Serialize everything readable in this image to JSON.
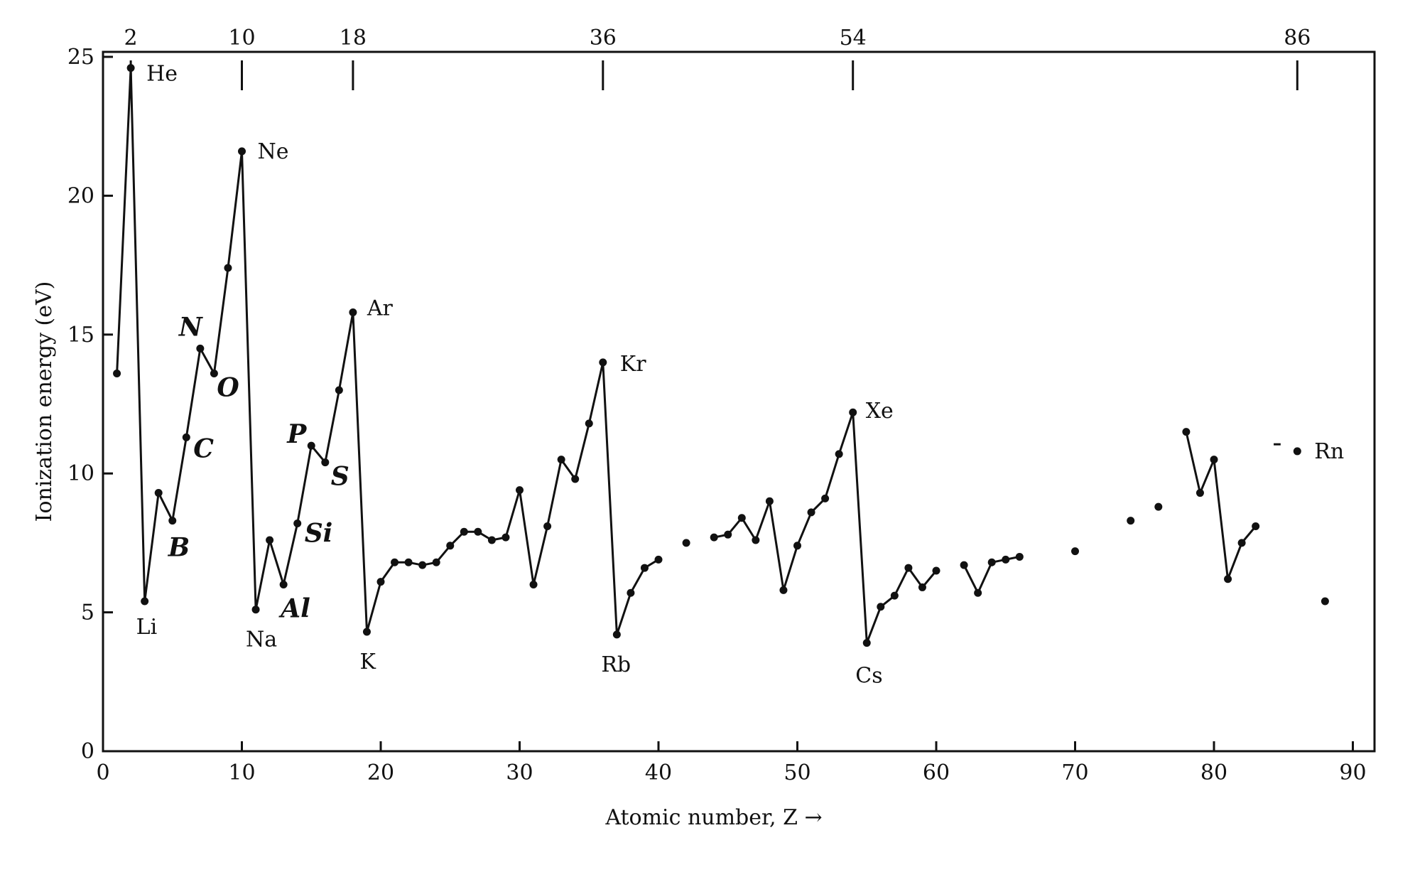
{
  "chart_data": {
    "type": "scatter",
    "xlabel": "Atomic number, Z →",
    "ylabel": "Ionization energy (eV)",
    "xlim": [
      0,
      91
    ],
    "ylim": [
      0,
      25
    ],
    "x_ticks": [
      "0",
      "10",
      "20",
      "30",
      "40",
      "50",
      "60",
      "70",
      "80",
      "90"
    ],
    "y_ticks": [
      "0",
      "5",
      "10",
      "15",
      "20",
      "25"
    ],
    "top_ticks": [
      {
        "z": 2,
        "label": "2"
      },
      {
        "z": 10,
        "label": "10"
      },
      {
        "z": 18,
        "label": "18"
      },
      {
        "z": 36,
        "label": "36"
      },
      {
        "z": 54,
        "label": "54"
      },
      {
        "z": 86,
        "label": "86"
      }
    ],
    "segments": [
      [
        [
          1,
          13.6
        ],
        [
          2,
          24.6
        ],
        [
          3,
          5.4
        ],
        [
          4,
          9.3
        ],
        [
          5,
          8.3
        ],
        [
          6,
          11.3
        ],
        [
          7,
          14.5
        ],
        [
          8,
          13.6
        ],
        [
          9,
          17.4
        ],
        [
          10,
          21.6
        ],
        [
          11,
          5.1
        ],
        [
          12,
          7.6
        ],
        [
          13,
          6.0
        ],
        [
          14,
          8.2
        ],
        [
          15,
          11.0
        ],
        [
          16,
          10.4
        ],
        [
          17,
          13.0
        ],
        [
          18,
          15.8
        ],
        [
          19,
          4.3
        ],
        [
          20,
          6.1
        ],
        [
          21,
          6.8
        ],
        [
          22,
          6.8
        ],
        [
          23,
          6.7
        ],
        [
          24,
          6.8
        ],
        [
          25,
          7.4
        ],
        [
          26,
          7.9
        ],
        [
          27,
          7.9
        ],
        [
          28,
          7.6
        ],
        [
          29,
          7.7
        ],
        [
          30,
          9.4
        ],
        [
          31,
          6.0
        ],
        [
          32,
          8.1
        ],
        [
          33,
          10.5
        ],
        [
          34,
          9.8
        ],
        [
          35,
          11.8
        ],
        [
          36,
          14.0
        ],
        [
          37,
          4.2
        ],
        [
          38,
          5.7
        ],
        [
          39,
          6.6
        ],
        [
          40,
          6.9
        ]
      ],
      [
        [
          42,
          7.5
        ]
      ],
      [
        [
          44,
          7.7
        ],
        [
          45,
          7.8
        ],
        [
          46,
          8.4
        ],
        [
          47,
          7.6
        ],
        [
          48,
          9.0
        ],
        [
          49,
          5.8
        ],
        [
          50,
          7.4
        ],
        [
          51,
          8.6
        ],
        [
          52,
          9.1
        ],
        [
          53,
          10.7
        ],
        [
          54,
          12.2
        ],
        [
          55,
          3.9
        ],
        [
          56,
          5.2
        ],
        [
          57,
          5.6
        ],
        [
          58,
          6.6
        ],
        [
          59,
          5.9
        ],
        [
          60,
          6.5
        ]
      ],
      [
        [
          62,
          6.7
        ],
        [
          63,
          5.7
        ],
        [
          64,
          6.8
        ],
        [
          65,
          6.9
        ],
        [
          66,
          7.0
        ]
      ],
      [
        [
          70,
          7.2
        ]
      ],
      [
        [
          74,
          8.3
        ]
      ],
      [
        [
          76,
          8.8
        ]
      ],
      [
        [
          78,
          11.5
        ],
        [
          79,
          9.3
        ],
        [
          80,
          10.5
        ],
        [
          81,
          6.2
        ],
        [
          82,
          7.5
        ],
        [
          83,
          8.1
        ]
      ],
      [
        [
          86,
          10.8
        ]
      ],
      [
        [
          88,
          5.4
        ]
      ]
    ],
    "element_labels": [
      {
        "text": "He",
        "z": 2,
        "e": 24.6,
        "dx": 22,
        "dy": 18
      },
      {
        "text": "Li",
        "z": 3,
        "e": 5.4,
        "dx": -12,
        "dy": 46
      },
      {
        "text": "Ne",
        "z": 10,
        "e": 21.6,
        "dx": 22,
        "dy": 10
      },
      {
        "text": "Na",
        "z": 11,
        "e": 5.1,
        "dx": -14,
        "dy": 52
      },
      {
        "text": "Ar",
        "z": 18,
        "e": 15.8,
        "dx": 20,
        "dy": 4
      },
      {
        "text": "K",
        "z": 19,
        "e": 4.3,
        "dx": -10,
        "dy": 52
      },
      {
        "text": "Kr",
        "z": 36,
        "e": 14.0,
        "dx": 24,
        "dy": 12
      },
      {
        "text": "Rb",
        "z": 37,
        "e": 4.2,
        "dx": -22,
        "dy": 52
      },
      {
        "text": "Xe",
        "z": 54,
        "e": 12.2,
        "dx": 18,
        "dy": 8
      },
      {
        "text": "Cs",
        "z": 55,
        "e": 3.9,
        "dx": -16,
        "dy": 56
      },
      {
        "text": "Rn",
        "z": 86,
        "e": 10.8,
        "dx": 24,
        "dy": 10
      }
    ],
    "handwritten_labels": [
      {
        "text": "N",
        "z": 7,
        "e": 14.5,
        "dx": -30,
        "dy": -18
      },
      {
        "text": "O",
        "z": 8,
        "e": 13.6,
        "dx": 4,
        "dy": 32
      },
      {
        "text": "C",
        "z": 6,
        "e": 11.3,
        "dx": 10,
        "dy": 28
      },
      {
        "text": "B",
        "z": 5,
        "e": 8.3,
        "dx": -6,
        "dy": 50
      },
      {
        "text": "P",
        "z": 15,
        "e": 11.0,
        "dx": -34,
        "dy": -4
      },
      {
        "text": "S",
        "z": 16,
        "e": 10.4,
        "dx": 8,
        "dy": 32
      },
      {
        "text": "Si",
        "z": 14,
        "e": 8.2,
        "dx": 10,
        "dy": 26
      },
      {
        "text": "Al",
        "z": 13,
        "e": 6.0,
        "dx": -4,
        "dy": 46
      }
    ]
  }
}
